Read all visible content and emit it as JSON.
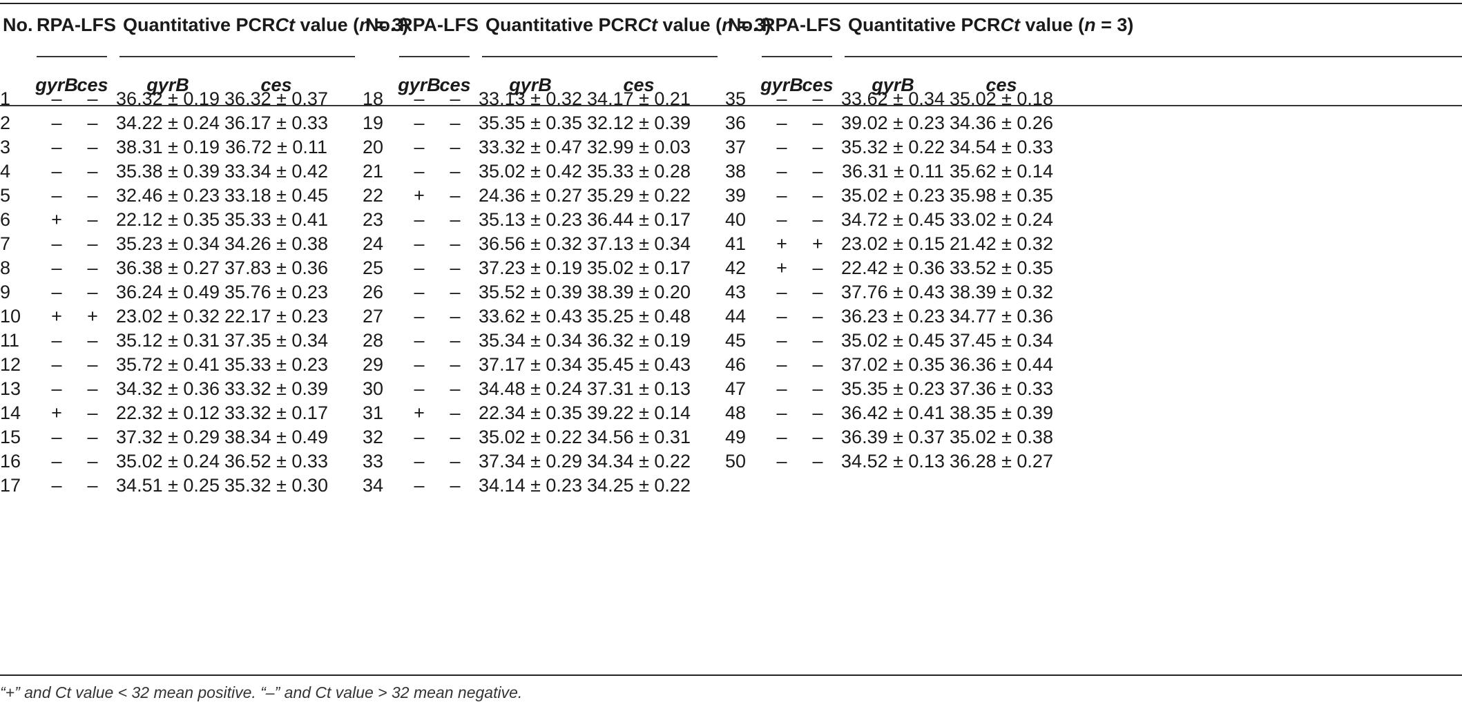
{
  "headers": {
    "no": "No.",
    "rpa": "RPA-LFS",
    "qpcr_prefix": "Quantitative PCR",
    "qpcr_ct": "Ct",
    "qpcr_mid": " value (",
    "qpcr_n": "n",
    "qpcr_suffix": " = 3)",
    "gyrb": "gyrB",
    "ces": "ces"
  },
  "groups": [
    {
      "rows": [
        [
          "1",
          "–",
          "–",
          "36.32 ± 0.19",
          "36.32 ± 0.37"
        ],
        [
          "2",
          "–",
          "–",
          "34.22 ± 0.24",
          "36.17 ± 0.33"
        ],
        [
          "3",
          "–",
          "–",
          "38.31 ± 0.19",
          "36.72 ± 0.11"
        ],
        [
          "4",
          "–",
          "–",
          "35.38 ± 0.39",
          "33.34 ± 0.42"
        ],
        [
          "5",
          "–",
          "–",
          "32.46 ± 0.23",
          "33.18 ± 0.45"
        ],
        [
          "6",
          "+",
          "–",
          "22.12 ± 0.35",
          "35.33 ± 0.41"
        ],
        [
          "7",
          "–",
          "–",
          "35.23 ± 0.34",
          "34.26 ± 0.38"
        ],
        [
          "8",
          "–",
          "–",
          "36.38 ± 0.27",
          "37.83 ± 0.36"
        ],
        [
          "9",
          "–",
          "–",
          "36.24 ± 0.49",
          "35.76 ± 0.23"
        ],
        [
          "10",
          "+",
          "+",
          "23.02 ± 0.32",
          "22.17 ± 0.23"
        ],
        [
          "11",
          "–",
          "–",
          "35.12 ± 0.31",
          "37.35 ± 0.34"
        ],
        [
          "12",
          "–",
          "–",
          "35.72 ± 0.41",
          "35.33 ± 0.23"
        ],
        [
          "13",
          "–",
          "–",
          "34.32 ± 0.36",
          "33.32 ± 0.39"
        ],
        [
          "14",
          "+",
          "–",
          "22.32 ± 0.12",
          "33.32 ± 0.17"
        ],
        [
          "15",
          "–",
          "–",
          "37.32 ± 0.29",
          "38.34 ± 0.49"
        ],
        [
          "16",
          "–",
          "–",
          "35.02 ± 0.24",
          "36.52 ± 0.33"
        ],
        [
          "17",
          "–",
          "–",
          "34.51 ± 0.25",
          "35.32 ± 0.30"
        ]
      ]
    },
    {
      "rows": [
        [
          "18",
          "–",
          "–",
          "33.13 ± 0.32",
          "34.17 ± 0.21"
        ],
        [
          "19",
          "–",
          "–",
          "35.35 ± 0.35",
          "32.12 ± 0.39"
        ],
        [
          "20",
          "–",
          "–",
          "33.32 ± 0.47",
          "32.99 ± 0.03"
        ],
        [
          "21",
          "–",
          "–",
          "35.02 ± 0.42",
          "35.33 ± 0.28"
        ],
        [
          "22",
          "+",
          "–",
          "24.36 ± 0.27",
          "35.29 ± 0.22"
        ],
        [
          "23",
          "–",
          "–",
          "35.13 ± 0.23",
          "36.44 ± 0.17"
        ],
        [
          "24",
          "–",
          "–",
          "36.56 ± 0.32",
          "37.13 ± 0.34"
        ],
        [
          "25",
          "–",
          "–",
          "37.23 ± 0.19",
          "35.02 ± 0.17"
        ],
        [
          "26",
          "–",
          "–",
          "35.52 ± 0.39",
          "38.39 ± 0.20"
        ],
        [
          "27",
          "–",
          "–",
          "33.62 ± 0.43",
          "35.25 ± 0.48"
        ],
        [
          "28",
          "–",
          "–",
          "35.34 ± 0.34",
          "36.32 ± 0.19"
        ],
        [
          "29",
          "–",
          "–",
          "37.17 ± 0.34",
          "35.45 ± 0.43"
        ],
        [
          "30",
          "–",
          "–",
          "34.48 ± 0.24",
          "37.31 ± 0.13"
        ],
        [
          "31",
          "+",
          "–",
          "22.34 ± 0.35",
          "39.22 ± 0.14"
        ],
        [
          "32",
          "–",
          "–",
          "35.02 ± 0.22",
          "34.56 ± 0.31"
        ],
        [
          "33",
          "–",
          "–",
          "37.34 ± 0.29",
          "34.34 ± 0.22"
        ],
        [
          "34",
          "–",
          "–",
          "34.14 ± 0.23",
          "34.25 ± 0.22"
        ]
      ]
    },
    {
      "rows": [
        [
          "35",
          "–",
          "–",
          "33.62 ± 0.34",
          "35.02 ± 0.18"
        ],
        [
          "36",
          "–",
          "–",
          "39.02 ± 0.23",
          "34.36 ± 0.26"
        ],
        [
          "37",
          "–",
          "–",
          "35.32 ± 0.22",
          "34.54 ± 0.33"
        ],
        [
          "38",
          "–",
          "–",
          "36.31 ± 0.11",
          "35.62 ± 0.14"
        ],
        [
          "39",
          "–",
          "–",
          "35.02 ± 0.23",
          "35.98 ± 0.35"
        ],
        [
          "40",
          "–",
          "–",
          "34.72 ± 0.45",
          "33.02 ± 0.24"
        ],
        [
          "41",
          "+",
          "+",
          "23.02 ± 0.15",
          "21.42 ± 0.32"
        ],
        [
          "42",
          "+",
          "–",
          "22.42 ± 0.36",
          "33.52 ± 0.35"
        ],
        [
          "43",
          "–",
          "–",
          "37.76 ± 0.43",
          "38.39 ± 0.32"
        ],
        [
          "44",
          "–",
          "–",
          "36.23 ± 0.23",
          "34.77 ± 0.36"
        ],
        [
          "45",
          "–",
          "–",
          "35.02 ± 0.45",
          "37.45 ± 0.34"
        ],
        [
          "46",
          "–",
          "–",
          "37.02 ± 0.35",
          "36.36 ± 0.44"
        ],
        [
          "47",
          "–",
          "–",
          "35.35 ± 0.23",
          "37.36 ± 0.33"
        ],
        [
          "48",
          "–",
          "–",
          "36.42 ± 0.41",
          "38.35 ± 0.39"
        ],
        [
          "49",
          "–",
          "–",
          "36.39 ± 0.37",
          "35.02 ± 0.38"
        ],
        [
          "50",
          "–",
          "–",
          "34.52 ± 0.13",
          "36.28 ± 0.27"
        ]
      ]
    }
  ],
  "footnote": "“+” and Ct value < 32 mean positive. “–” and Ct value > 32 mean negative."
}
